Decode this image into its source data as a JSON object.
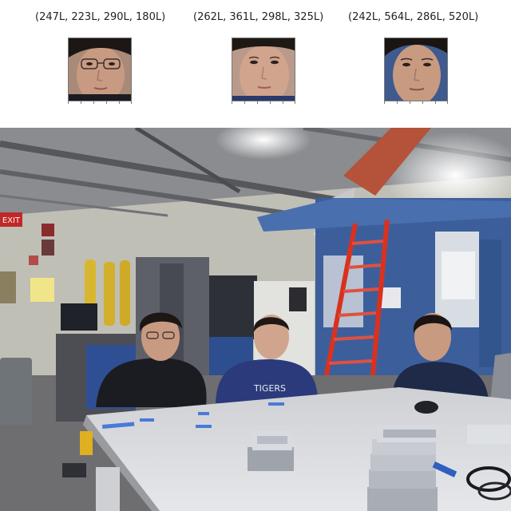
{
  "figure": {
    "face_crops": [
      {
        "id": "face-1",
        "caption": "(247L, 223L, 290L, 180L)",
        "skin": "#c99a82",
        "hair": "#1c1714",
        "glasses": true
      },
      {
        "id": "face-2",
        "caption": "(262L, 361L, 298L, 325L)",
        "skin": "#d1a48d",
        "hair": "#1e1915",
        "glasses": false
      },
      {
        "id": "face-3",
        "caption": "(242L, 564L, 286L, 520L)",
        "skin": "#c89a80",
        "hair": "#1a1512",
        "glasses": false
      }
    ],
    "photo": {
      "sign_exit": "EXIT",
      "sweatshirt_text": "TIGERS",
      "colors": {
        "ceiling": "#7d8086",
        "wall": "#bfbfb6",
        "machine_blue": "#3c5f9c",
        "ladder_red": "#d8321f",
        "table_top": "#d9dade",
        "floor": "#6e6e70"
      }
    }
  }
}
